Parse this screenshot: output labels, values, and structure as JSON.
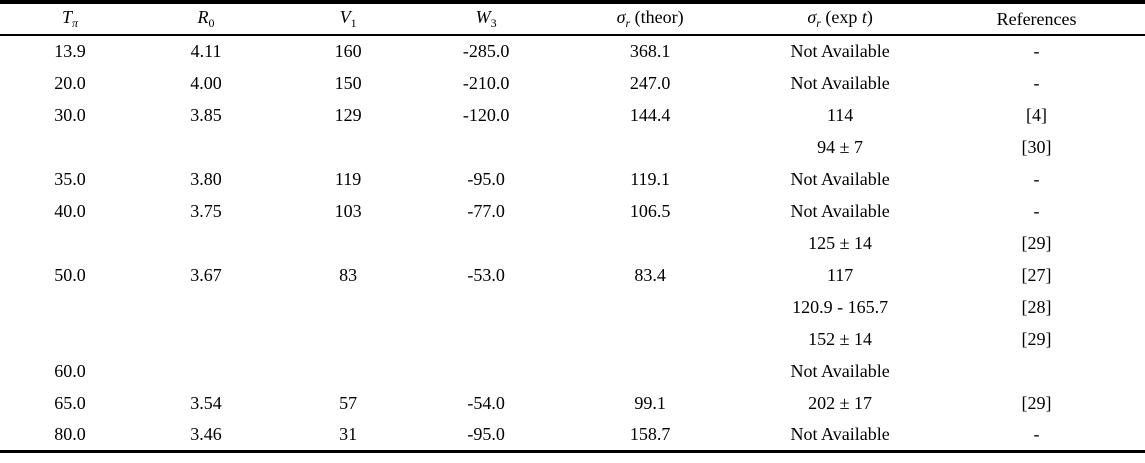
{
  "table": {
    "headers": [
      {
        "segments": [
          {
            "t": "T",
            "s": "i"
          },
          {
            "t": "π",
            "s": "subi"
          }
        ]
      },
      {
        "segments": [
          {
            "t": "R",
            "s": "i"
          },
          {
            "t": "0",
            "s": "sub"
          }
        ]
      },
      {
        "segments": [
          {
            "t": "V",
            "s": "i"
          },
          {
            "t": "1",
            "s": "sub"
          }
        ]
      },
      {
        "segments": [
          {
            "t": "W",
            "s": "i"
          },
          {
            "t": "3",
            "s": "sub"
          }
        ]
      },
      {
        "segments": [
          {
            "t": "σ",
            "s": "i"
          },
          {
            "t": "r",
            "s": "subi"
          },
          {
            "t": " (theor)",
            "s": "r"
          }
        ]
      },
      {
        "segments": [
          {
            "t": "σ",
            "s": "i"
          },
          {
            "t": "r",
            "s": "subi"
          },
          {
            "t": " (exp ",
            "s": "r"
          },
          {
            "t": "t",
            "s": "i"
          },
          {
            "t": ")",
            "s": "r"
          }
        ]
      },
      {
        "segments": [
          {
            "t": "References",
            "s": "r"
          }
        ]
      }
    ],
    "rows": [
      [
        "13.9",
        "4.11",
        "160",
        "-285.0",
        "368.1",
        "Not Available",
        "-"
      ],
      [
        "20.0",
        "4.00",
        "150",
        "-210.0",
        "247.0",
        "Not Available",
        "-"
      ],
      [
        "30.0",
        "3.85",
        "129",
        "-120.0",
        "144.4",
        "114",
        "[4]"
      ],
      [
        "",
        "",
        "",
        "",
        "",
        "94 ± 7",
        "[30]"
      ],
      [
        "35.0",
        "3.80",
        "119",
        "-95.0",
        "119.1",
        "Not Available",
        "-"
      ],
      [
        "40.0",
        "3.75",
        "103",
        "-77.0",
        "106.5",
        "Not Available",
        "-"
      ],
      [
        "",
        "",
        "",
        "",
        "",
        "125 ± 14",
        "[29]"
      ],
      [
        "50.0",
        "3.67",
        "83",
        "-53.0",
        "83.4",
        "117",
        "[27]"
      ],
      [
        "",
        "",
        "",
        "",
        "",
        "120.9 - 165.7",
        "[28]"
      ],
      [
        "",
        "",
        "",
        "",
        "",
        "152 ± 14",
        "[29]"
      ],
      [
        "60.0",
        "",
        "",
        "",
        "",
        "Not Available",
        ""
      ],
      [
        "65.0",
        "3.54",
        "57",
        "-54.0",
        "99.1",
        "202 ± 17",
        "[29]"
      ],
      [
        "80.0",
        "3.46",
        "31",
        "-95.0",
        "158.7",
        "Not Available",
        "-"
      ]
    ],
    "colors": {
      "rule": "#000000",
      "text": "#000000",
      "background": "#ffffff"
    }
  }
}
